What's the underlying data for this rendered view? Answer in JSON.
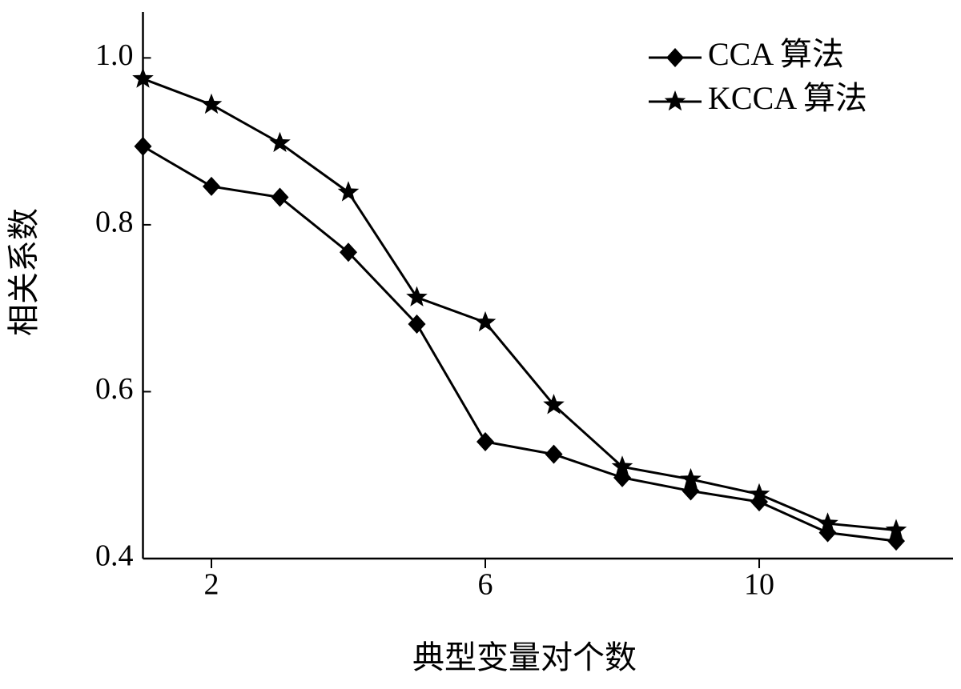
{
  "chart_data": {
    "type": "line",
    "x_label": "典型变量对个数",
    "y_label": "相关系数",
    "series": [
      {
        "name": "CCA 算法",
        "color": "#000000",
        "marker": "diamond",
        "x": [
          1,
          2,
          3,
          4,
          5,
          6,
          7,
          8,
          9,
          10,
          11,
          12
        ],
        "values": [
          0.894,
          0.846,
          0.833,
          0.767,
          0.681,
          0.54,
          0.525,
          0.497,
          0.481,
          0.468,
          0.431,
          0.421
        ]
      },
      {
        "name": "KCCA 算法",
        "color": "#000000",
        "marker": "star",
        "x": [
          1,
          2,
          3,
          4,
          5,
          6,
          7,
          8,
          9,
          10,
          11,
          12
        ],
        "values": [
          0.975,
          0.944,
          0.898,
          0.839,
          0.713,
          0.683,
          0.584,
          0.51,
          0.495,
          0.477,
          0.442,
          0.434
        ]
      }
    ],
    "xlim": [
      1,
      12.83
    ],
    "xticks": [
      2,
      6,
      10
    ],
    "ylim": [
      0.4,
      1.055
    ],
    "yticks": [
      0.4,
      0.6,
      0.8,
      {
        "value": 1,
        "label": "1.0"
      }
    ],
    "legend": "top-right"
  }
}
